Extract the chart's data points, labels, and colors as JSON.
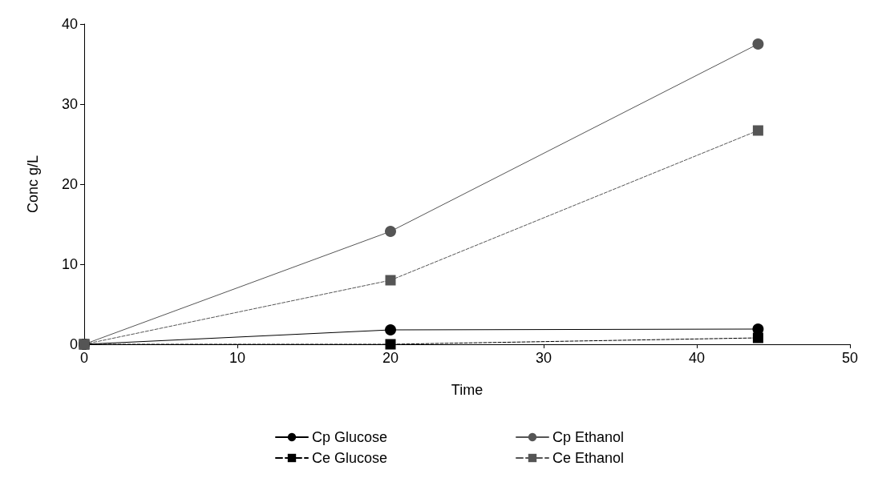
{
  "chart_data": {
    "type": "line",
    "xlabel": "Time",
    "ylabel": "Conc g/L",
    "xlim": [
      0,
      50
    ],
    "xticks": [
      0,
      10,
      20,
      30,
      40,
      50
    ],
    "ylim": [
      0,
      40
    ],
    "yticks": [
      0,
      10,
      20,
      30,
      40
    ],
    "grid": false,
    "legend": "bottom",
    "series": [
      {
        "name": "Cp Glucose",
        "color": "#000000",
        "marker": "circle",
        "line_style": "solid",
        "x": [
          0,
          20,
          44
        ],
        "values": [
          0,
          1.8,
          1.9
        ]
      },
      {
        "name": "Cp Ethanol",
        "color": "#555555",
        "marker": "circle",
        "line_style": "solid",
        "x": [
          0,
          20,
          44
        ],
        "values": [
          0,
          14.1,
          37.5
        ]
      },
      {
        "name": "Ce Glucose",
        "color": "#000000",
        "marker": "square",
        "line_style": "dashed",
        "x": [
          0,
          20,
          44
        ],
        "values": [
          0,
          0,
          0.8
        ]
      },
      {
        "name": "Ce Ethanol",
        "color": "#555555",
        "marker": "square",
        "line_style": "dashed",
        "x": [
          0,
          20,
          44
        ],
        "values": [
          0,
          8,
          26.7
        ]
      }
    ]
  }
}
